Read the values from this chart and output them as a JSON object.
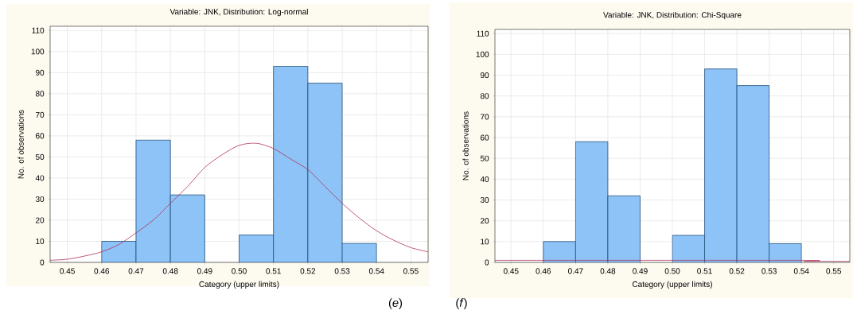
{
  "chart_data": [
    {
      "type": "histogram",
      "title": "Variable: JNK, Distribution: Log-normal",
      "xlabel": "Category (upper limits)",
      "ylabel": "No. of observations",
      "bins": [
        0.46,
        0.47,
        0.48,
        0.49,
        0.5,
        0.51,
        0.52,
        0.53,
        0.54
      ],
      "values": [
        10,
        58,
        32,
        0,
        13,
        93,
        85,
        9
      ],
      "color": "#8ec3f7",
      "series": [
        {
          "type": "line",
          "color": "#b0305a",
          "x": [
            0.445,
            0.45,
            0.455,
            0.46,
            0.465,
            0.47,
            0.475,
            0.48,
            0.485,
            0.49,
            0.495,
            0.5,
            0.505,
            0.51,
            0.515,
            0.52,
            0.525,
            0.53,
            0.535,
            0.54,
            0.545,
            0.55,
            0.555
          ],
          "values": [
            1,
            1.5,
            3,
            5,
            8.5,
            14,
            20,
            28,
            36,
            45,
            51,
            55.5,
            56.5,
            54,
            49,
            44,
            36,
            28,
            21,
            15,
            10.5,
            7,
            5
          ]
        }
      ],
      "xlim": [
        0.445,
        0.555
      ],
      "ylim": [
        0,
        112
      ],
      "xticks": [
        0.45,
        0.46,
        0.47,
        0.48,
        0.49,
        {
          "value": 0.5,
          "label": "0.50"
        },
        0.51,
        0.52,
        0.53,
        0.54,
        0.55
      ],
      "yticks": [
        0,
        10,
        20,
        30,
        40,
        50,
        60,
        70,
        80,
        90,
        100,
        110
      ],
      "grid": true,
      "marker": "none",
      "annotations": [
        "(*e*)"
      ]
    },
    {
      "type": "histogram",
      "title": "Variable: JNK, Distribution: Chi-Square",
      "xlabel": "Category (upper limits)",
      "ylabel": "No. of observations",
      "bins": [
        0.46,
        0.47,
        0.48,
        0.49,
        0.5,
        0.51,
        0.52,
        0.53,
        0.54
      ],
      "values": [
        10,
        58,
        32,
        0,
        13,
        93,
        85,
        9
      ],
      "color": "#8ec3f7",
      "series": [
        {
          "type": "line",
          "color": "#b0305a",
          "x": [
            0.445,
            0.54,
            0.541,
            0.555
          ],
          "values": [
            1,
            1,
            0.5,
            0.5
          ]
        }
      ],
      "xlim": [
        0.445,
        0.555
      ],
      "ylim": [
        0,
        112
      ],
      "xticks": [
        0.45,
        0.46,
        0.47,
        0.48,
        0.49,
        {
          "value": 0.5,
          "label": "0.50"
        },
        0.51,
        0.52,
        0.53,
        0.54,
        0.55
      ],
      "yticks": [
        0,
        10,
        20,
        30,
        40,
        50,
        60,
        70,
        80,
        90,
        100,
        110
      ],
      "grid": true,
      "marker": "none",
      "annotations": [
        "(*f*)"
      ]
    }
  ]
}
